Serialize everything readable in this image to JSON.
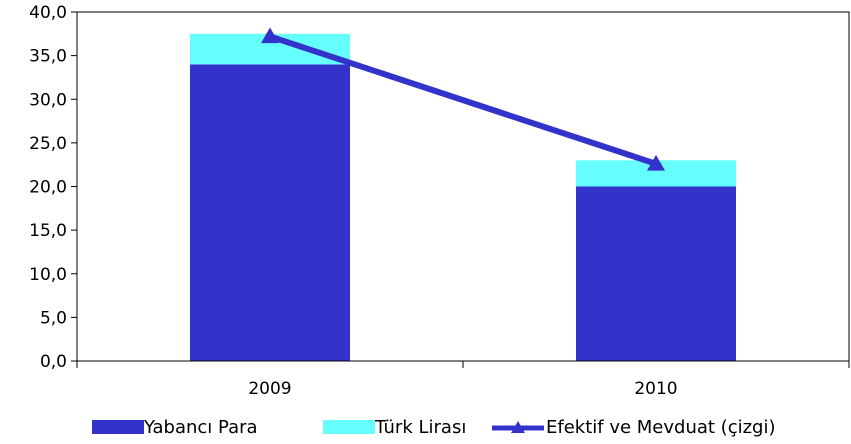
{
  "chart_data": {
    "type": "bar",
    "stacked": true,
    "categories": [
      "2009",
      "2010"
    ],
    "series": [
      {
        "name": "Yabancı Para",
        "kind": "bar",
        "color": "#3333cc",
        "values": [
          34.0,
          20.0
        ]
      },
      {
        "name": "Türk Lirası",
        "kind": "bar",
        "color": "#66ffff",
        "values": [
          3.5,
          3.0
        ]
      },
      {
        "name": "Efektif ve Mevduat (çizgi)",
        "kind": "line",
        "color": "#3333cc",
        "marker": "triangle",
        "values": [
          37.2,
          22.6
        ]
      }
    ],
    "ylim": [
      0,
      40
    ],
    "yticks": [
      "0,0",
      "5,0",
      "10,0",
      "15,0",
      "20,0",
      "25,0",
      "30,0",
      "35,0",
      "40,0"
    ],
    "grid": false,
    "legend_position": "bottom"
  }
}
